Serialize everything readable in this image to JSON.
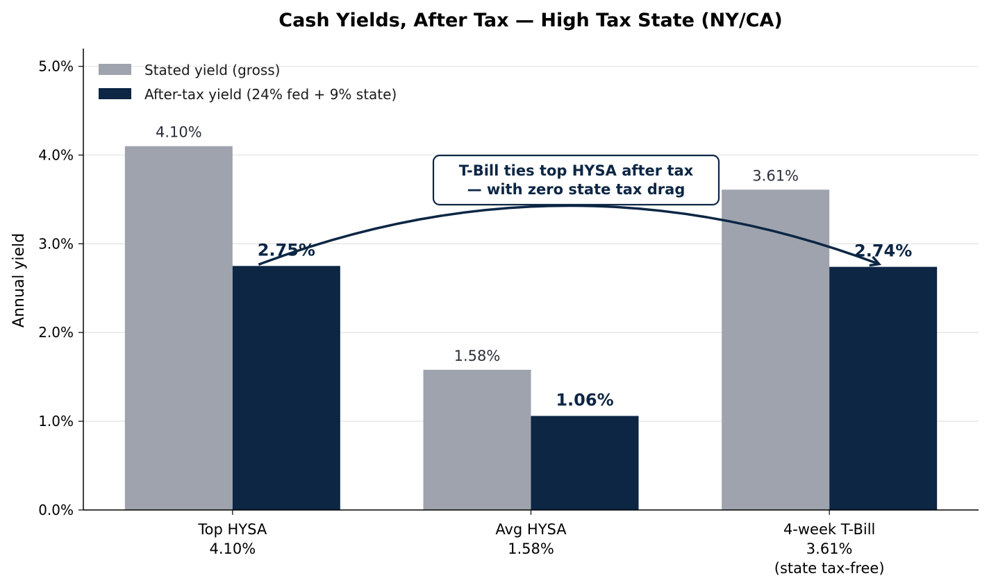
{
  "chart_data": {
    "type": "bar",
    "title": "Cash Yields, After Tax — High Tax State (NY/CA)",
    "xlabel": "",
    "ylabel": "Annual yield",
    "ylim": [
      0,
      5.2
    ],
    "yticks": [
      "0.0%",
      "1.0%",
      "2.0%",
      "3.0%",
      "4.0%",
      "5.0%"
    ],
    "ytick_values": [
      0,
      1,
      2,
      3,
      4,
      5
    ],
    "grid": "horizontal",
    "legend_position": "top-left",
    "categories": [
      [
        "Top HYSA",
        "4.10%"
      ],
      [
        "Avg HYSA",
        "1.58%"
      ],
      [
        "4-week T-Bill",
        "3.61%",
        "(state tax-free)"
      ]
    ],
    "series": [
      {
        "name": "Stated yield (gross)",
        "color": "#9ea3ad",
        "values": [
          4.1,
          1.58,
          3.61
        ],
        "labels": [
          "4.10%",
          "1.58%",
          "3.61%"
        ]
      },
      {
        "name": "After-tax yield (24% fed + 9% state)",
        "color": "#0c2644",
        "values": [
          2.75,
          1.06,
          2.74
        ],
        "labels": [
          "2.75%",
          "1.06%",
          "2.74%"
        ]
      }
    ],
    "annotation": {
      "lines": [
        "T-Bill ties top HYSA after tax",
        "— with zero state tax drag"
      ],
      "color": "#0c2644",
      "arrow_from_category": 0,
      "arrow_to_category": 2
    }
  }
}
